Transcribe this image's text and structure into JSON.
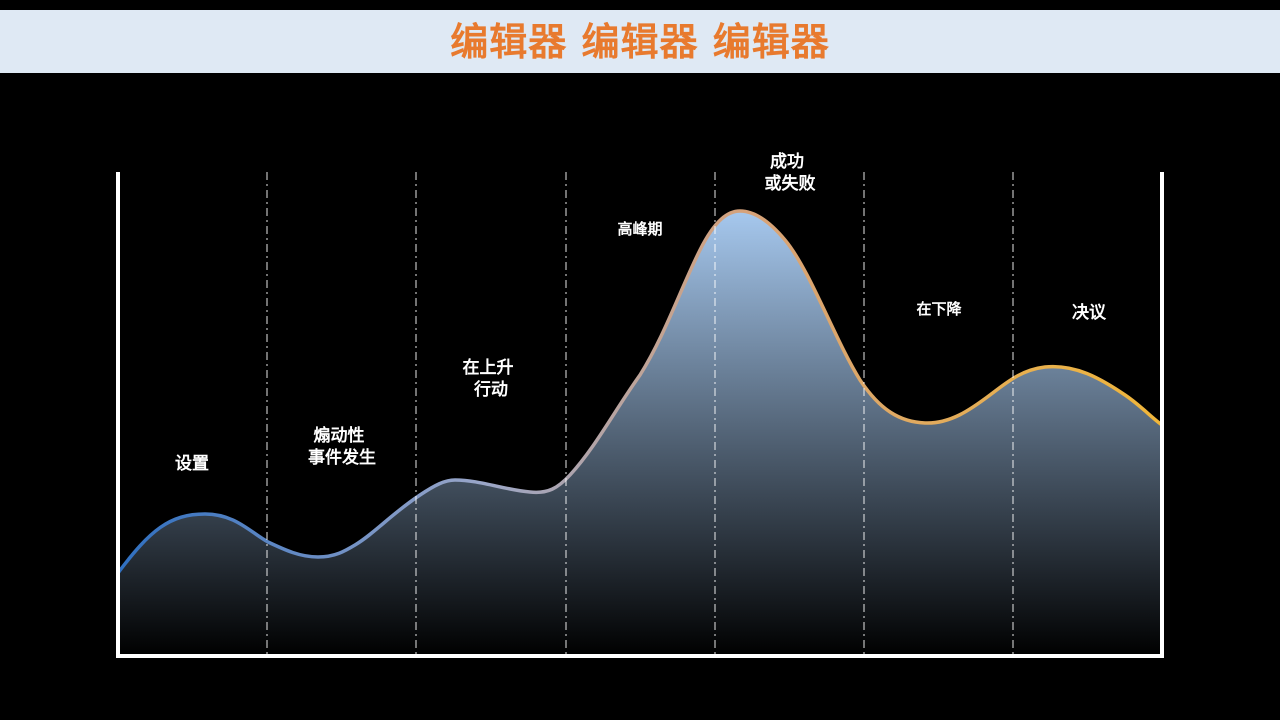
{
  "header": {
    "title": "编辑器 编辑器 编辑器",
    "title_color": "#e87a2e",
    "bar_color": "#dfe9f4"
  },
  "diagram": {
    "type": "story-arc",
    "stages": [
      {
        "lines": [
          "设置"
        ]
      },
      {
        "lines": [
          "煽动性",
          "事件发生"
        ]
      },
      {
        "lines": [
          "在上升",
          "行动"
        ]
      },
      {
        "lines": [
          "高峰期"
        ]
      },
      {
        "lines": [
          "成功",
          "或失败"
        ]
      },
      {
        "lines": [
          "在下降"
        ]
      },
      {
        "lines": [
          "决议"
        ]
      }
    ],
    "curve_gradient": [
      "#2f6fc0",
      "#9aa6c8",
      "#d6a27a",
      "#f0b63a"
    ],
    "fill_gradient": [
      "#a6c8ee",
      "#000000"
    ],
    "axis_color": "#ffffff",
    "divider_color": "#ffffff"
  }
}
